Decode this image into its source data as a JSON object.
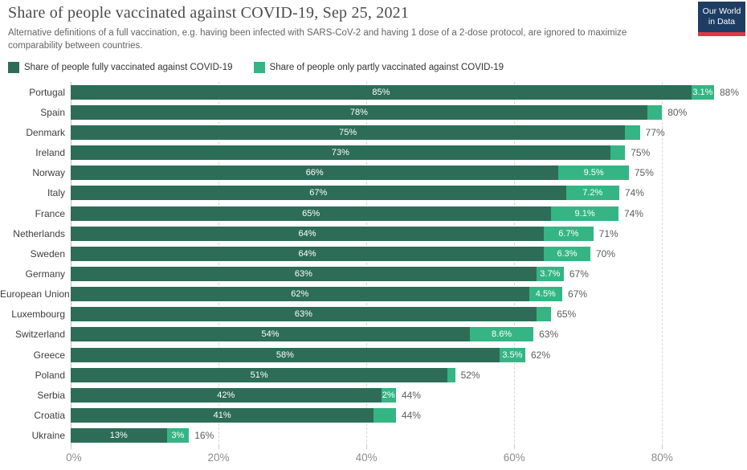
{
  "header": {
    "title": "Share of people vaccinated against COVID-19, Sep 25, 2021",
    "subtitle": "Alternative definitions of a full vaccination, e.g. having been infected with SARS-CoV-2 and having 1 dose of a 2-dose protocol, are ignored to maximize comparability between countries.",
    "logo": {
      "line1": "Our World",
      "line2": "in Data"
    }
  },
  "legend": {
    "items": [
      {
        "label": "Share of people fully vaccinated against COVID-19",
        "color": "#2d6d57"
      },
      {
        "label": "Share of people only partly vaccinated against COVID-19",
        "color": "#35b584"
      }
    ]
  },
  "colors": {
    "fully": "#2d6d57",
    "partly": "#35b584",
    "logo_navy": "#1d3d63",
    "logo_red": "#dc3a45",
    "gridline": "#d7d7d7",
    "axis_text": "#8d8d8d",
    "total_text": "#5c5c5c"
  },
  "chart_data": {
    "type": "bar",
    "orientation": "horizontal",
    "stacked": true,
    "title": "Share of people vaccinated against COVID-19, Sep 25, 2021",
    "xlabel": "",
    "ylabel": "",
    "xlim": [
      0,
      90.4
    ],
    "grid": "dashed-vertical",
    "legend_position": "top",
    "x_ticks": [
      {
        "value": 0,
        "label": "0%"
      },
      {
        "value": 20,
        "label": "20%"
      },
      {
        "value": 40,
        "label": "40%"
      },
      {
        "value": 60,
        "label": "60%"
      },
      {
        "value": 80,
        "label": "80%"
      }
    ],
    "categories": [
      "Portugal",
      "Spain",
      "Denmark",
      "Ireland",
      "Norway",
      "Italy",
      "France",
      "Netherlands",
      "Sweden",
      "Germany",
      "European Union",
      "Luxembourg",
      "Switzerland",
      "Greece",
      "Poland",
      "Serbia",
      "Croatia",
      "Ukraine"
    ],
    "series": [
      {
        "name": "Share of people fully vaccinated against COVID-19",
        "color": "#2d6d57",
        "values": [
          85,
          78,
          75,
          73,
          66,
          67,
          65,
          64,
          64,
          63,
          62,
          63,
          54,
          58,
          51,
          42,
          41,
          13
        ]
      },
      {
        "name": "Share of people only partly vaccinated against COVID-19",
        "color": "#35b584",
        "values": [
          3.1,
          2,
          2,
          2,
          9.5,
          7.2,
          9.1,
          6.7,
          6.3,
          3.7,
          4.5,
          2,
          8.6,
          3.5,
          1,
          2,
          3,
          3
        ]
      }
    ],
    "totals": [
      88,
      80,
      77,
      75,
      75,
      74,
      74,
      71,
      70,
      67,
      67,
      65,
      63,
      62,
      52,
      44,
      44,
      16
    ],
    "rows": [
      {
        "country": "Portugal",
        "fully": 85,
        "partly": 3.1,
        "fully_label": "85%",
        "partly_label": "3.1%",
        "total_label": "88%"
      },
      {
        "country": "Spain",
        "fully": 78,
        "partly": 2,
        "fully_label": "78%",
        "partly_label": "",
        "total_label": "80%"
      },
      {
        "country": "Denmark",
        "fully": 75,
        "partly": 2,
        "fully_label": "75%",
        "partly_label": "",
        "total_label": "77%"
      },
      {
        "country": "Ireland",
        "fully": 73,
        "partly": 2,
        "fully_label": "73%",
        "partly_label": "",
        "total_label": "75%"
      },
      {
        "country": "Norway",
        "fully": 66,
        "partly": 9.5,
        "fully_label": "66%",
        "partly_label": "9.5%",
        "total_label": "75%"
      },
      {
        "country": "Italy",
        "fully": 67,
        "partly": 7.2,
        "fully_label": "67%",
        "partly_label": "7.2%",
        "total_label": "74%"
      },
      {
        "country": "France",
        "fully": 65,
        "partly": 9.1,
        "fully_label": "65%",
        "partly_label": "9.1%",
        "total_label": "74%"
      },
      {
        "country": "Netherlands",
        "fully": 64,
        "partly": 6.7,
        "fully_label": "64%",
        "partly_label": "6.7%",
        "total_label": "71%"
      },
      {
        "country": "Sweden",
        "fully": 64,
        "partly": 6.3,
        "fully_label": "64%",
        "partly_label": "6.3%",
        "total_label": "70%"
      },
      {
        "country": "Germany",
        "fully": 63,
        "partly": 3.7,
        "fully_label": "63%",
        "partly_label": "3.7%",
        "total_label": "67%"
      },
      {
        "country": "European Union",
        "fully": 62,
        "partly": 4.5,
        "fully_label": "62%",
        "partly_label": "4.5%",
        "total_label": "67%"
      },
      {
        "country": "Luxembourg",
        "fully": 63,
        "partly": 2,
        "fully_label": "63%",
        "partly_label": "",
        "total_label": "65%"
      },
      {
        "country": "Switzerland",
        "fully": 54,
        "partly": 8.6,
        "fully_label": "54%",
        "partly_label": "8.6%",
        "total_label": "63%"
      },
      {
        "country": "Greece",
        "fully": 58,
        "partly": 3.5,
        "fully_label": "58%",
        "partly_label": "3.5%",
        "total_label": "62%"
      },
      {
        "country": "Poland",
        "fully": 51,
        "partly": 1,
        "fully_label": "51%",
        "partly_label": "",
        "total_label": "52%"
      },
      {
        "country": "Serbia",
        "fully": 42,
        "partly": 2,
        "fully_label": "42%",
        "partly_label": "2%",
        "total_label": "44%"
      },
      {
        "country": "Croatia",
        "fully": 41,
        "partly": 3,
        "fully_label": "41%",
        "partly_label": "",
        "total_label": "44%"
      },
      {
        "country": "Ukraine",
        "fully": 13,
        "partly": 3,
        "fully_label": "13%",
        "partly_label": "3%",
        "total_label": "16%"
      }
    ]
  }
}
